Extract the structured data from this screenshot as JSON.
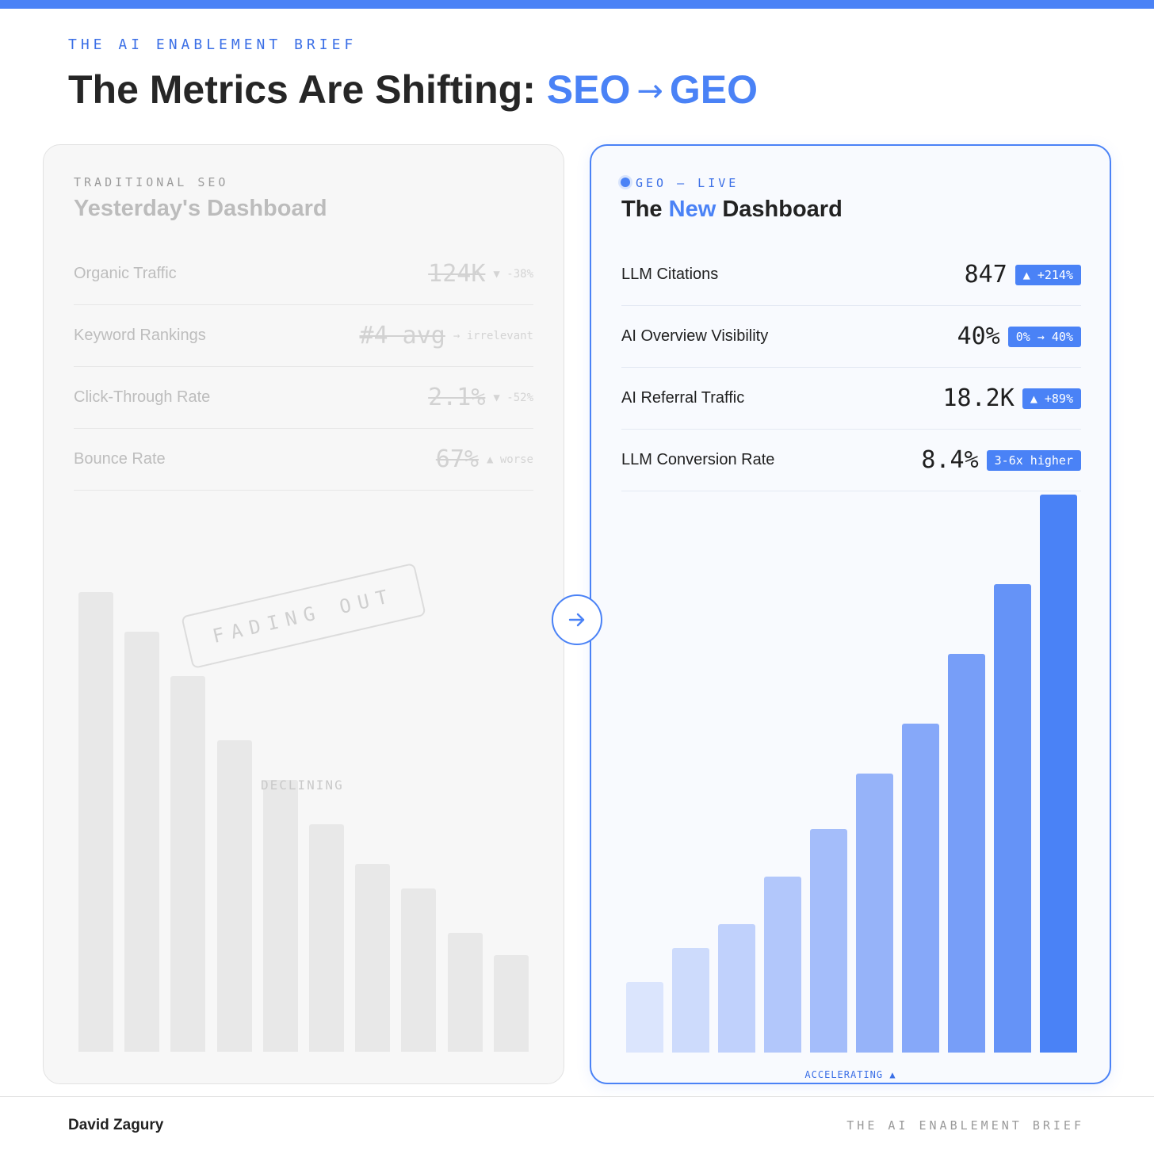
{
  "header": {
    "kicker": "THE AI ENABLEMENT BRIEF",
    "title_prefix": "The Metrics Are Shifting: ",
    "title_from": "SEO",
    "title_arrow": "→",
    "title_to": "GEO"
  },
  "old_panel": {
    "kicker": "TRADITIONAL SEO",
    "title": "Yesterday's Dashboard",
    "metrics": [
      {
        "label": "Organic Traffic",
        "value": "124K",
        "note": "▼ -38%"
      },
      {
        "label": "Keyword Rankings",
        "value": "#4 avg",
        "note": "→ irrelevant"
      },
      {
        "label": "Click-Through Rate",
        "value": "2.1%",
        "note": "▼ -52%"
      },
      {
        "label": "Bounce Rate",
        "value": "67%",
        "note": "▲ worse"
      }
    ],
    "stamp": "FADING OUT",
    "trend_label": "DECLINING",
    "bar_levels": [
      0.93,
      0.85,
      0.76,
      0.63,
      0.55,
      0.46,
      0.38,
      0.33,
      0.24,
      0.196
    ],
    "bar_color": "#e8e8e8"
  },
  "new_panel": {
    "kicker": "GEO — LIVE",
    "title_part1": "The ",
    "title_highlight": "New",
    "title_part2": " Dashboard",
    "metrics": [
      {
        "label": "LLM Citations",
        "value": "847",
        "badge": "▲ +214%"
      },
      {
        "label": "AI Overview Visibility",
        "value": "40%",
        "badge": "0% → 40%"
      },
      {
        "label": "AI Referral Traffic",
        "value": "18.2K",
        "badge": "▲ +89%"
      },
      {
        "label": "LLM Conversion Rate",
        "value": "8.4%",
        "badge": "3-6x higher"
      }
    ],
    "trend_label": "ACCELERATING ▲",
    "bar_levels": [
      0.126,
      0.188,
      0.23,
      0.315,
      0.4,
      0.5,
      0.59,
      0.715,
      0.84,
      1.0
    ],
    "bar_colors": [
      "#dbe5fd",
      "#cddbfc",
      "#c0d1fc",
      "#b2c7fb",
      "#a4bdfa",
      "#96b3f9",
      "#86a8f9",
      "#779ef8",
      "#6593f7",
      "#4a82f6"
    ]
  },
  "colors": {
    "accent": "#4a82f6"
  },
  "icons": {
    "transition": "arrow-right-icon"
  },
  "footer": {
    "author": "David Zagury",
    "brand": "THE AI ENABLEMENT BRIEF"
  }
}
